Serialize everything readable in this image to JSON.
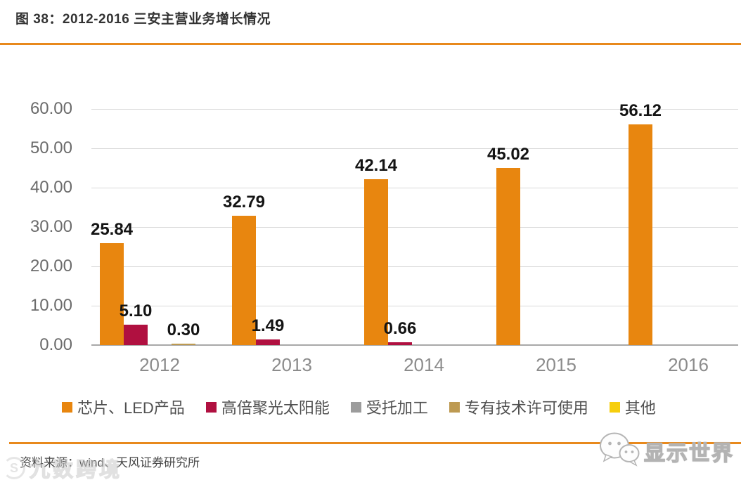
{
  "header": {
    "title": "图 38：2012-2016 三安主营业务增长情况"
  },
  "accent_color": "#E8891C",
  "chart_data": {
    "type": "bar",
    "title": "图 38：2012-2016 三安主营业务增长情况",
    "categories": [
      "2012",
      "2013",
      "2014",
      "2015",
      "2016"
    ],
    "series": [
      {
        "name": "芯片、LED产品",
        "color": "#E8860F",
        "values": [
          25.84,
          32.79,
          42.14,
          45.02,
          56.12
        ],
        "labels": [
          "25.84",
          "32.79",
          "42.14",
          "45.02",
          "56.12"
        ]
      },
      {
        "name": "高倍聚光太阳能",
        "color": "#B01040",
        "values": [
          5.1,
          1.49,
          0.66,
          null,
          null
        ],
        "labels": [
          "5.10",
          "1.49",
          "0.66",
          null,
          null
        ]
      },
      {
        "name": "受托加工",
        "color": "#9C9C9C",
        "values": [
          null,
          null,
          null,
          null,
          null
        ],
        "labels": [
          null,
          null,
          null,
          null,
          null
        ]
      },
      {
        "name": "专有技术许可使用",
        "color": "#BD9A52",
        "values": [
          0.3,
          null,
          null,
          null,
          null
        ],
        "labels": [
          "0.30",
          null,
          null,
          null,
          null
        ]
      },
      {
        "name": "其他",
        "color": "#F6CE0D",
        "values": [
          null,
          null,
          null,
          null,
          null
        ],
        "labels": [
          null,
          null,
          null,
          null,
          null
        ]
      }
    ],
    "ylim": [
      0,
      60
    ],
    "y_ticks": [
      {
        "value": 0,
        "label": "0.00"
      },
      {
        "value": 10,
        "label": "10.00"
      },
      {
        "value": 20,
        "label": "20.00"
      },
      {
        "value": 30,
        "label": "30.00"
      },
      {
        "value": 40,
        "label": "40.00"
      },
      {
        "value": 50,
        "label": "50.00"
      },
      {
        "value": 60,
        "label": "60.00"
      }
    ],
    "grid": true,
    "legend_position": "bottom"
  },
  "footer": {
    "source": "资料来源：wind、天风证券研究所",
    "watermark_badge": "S",
    "watermark": "九数跨境",
    "brand": "显示世界"
  }
}
